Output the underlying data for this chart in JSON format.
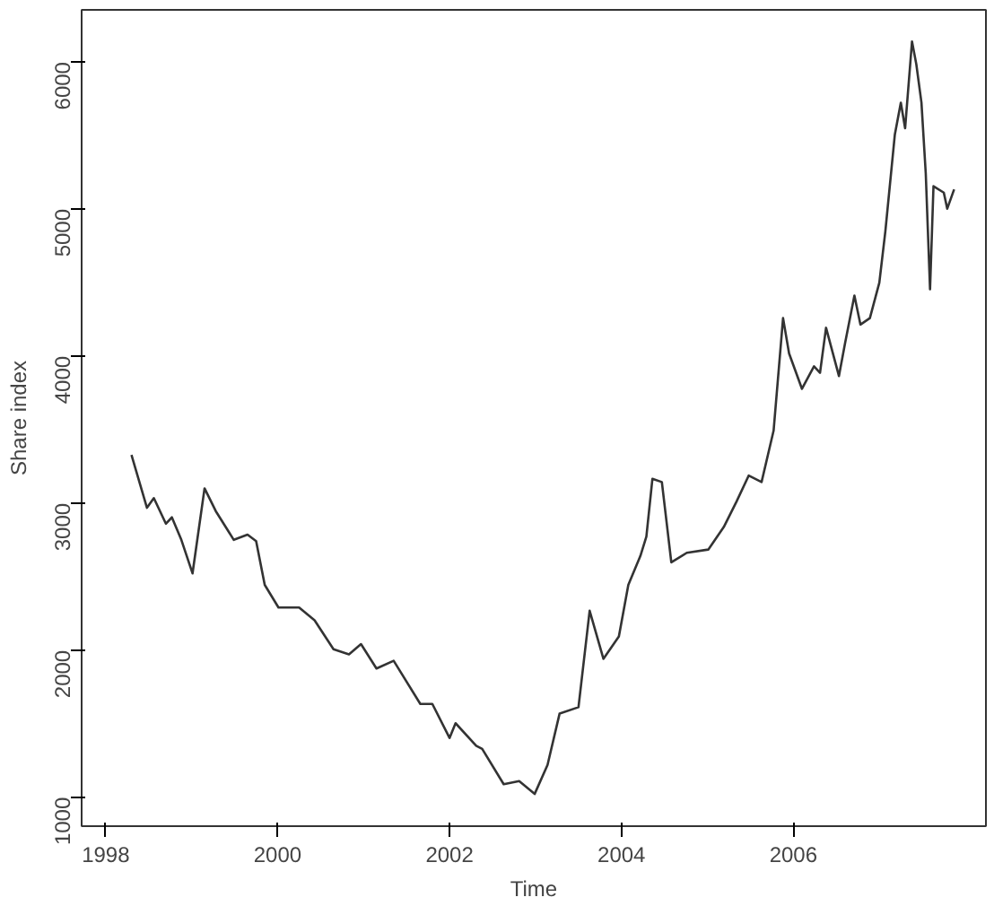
{
  "chart_data": {
    "type": "line",
    "xlabel": "Time",
    "ylabel": "Share index",
    "xlim": [
      1997.72,
      2008.24
    ],
    "ylim": [
      803,
      6354
    ],
    "xticks": [
      1998,
      2000,
      2002,
      2004,
      2006
    ],
    "yticks": [
      1000,
      2000,
      3000,
      4000,
      5000,
      6000
    ],
    "grid": false,
    "series": [
      {
        "color": "#333333",
        "x": [
          1998.3,
          1998.48,
          1998.56,
          1998.7,
          1998.77,
          1998.88,
          1999.01,
          1999.15,
          1999.28,
          1999.49,
          1999.65,
          1999.75,
          1999.85,
          2000.01,
          2000.25,
          2000.43,
          2000.65,
          2000.83,
          2000.97,
          2001.15,
          2001.35,
          2001.66,
          2001.8,
          2002.0,
          2002.07,
          2002.31,
          2002.38,
          2002.63,
          2002.81,
          2002.99,
          2003.14,
          2003.28,
          2003.5,
          2003.63,
          2003.79,
          2003.97,
          2004.08,
          2004.22,
          2004.29,
          2004.36,
          2004.47,
          2004.58,
          2004.76,
          2005.01,
          2005.19,
          2005.34,
          2005.48,
          2005.63,
          2005.77,
          2005.88,
          2005.95,
          2006.1,
          2006.24,
          2006.31,
          2006.38,
          2006.53,
          2006.6,
          2006.71,
          2006.78,
          2006.89,
          2007.0,
          2007.07,
          2007.18,
          2007.25,
          2007.3,
          2007.38,
          2007.43,
          2007.49,
          2007.54,
          2007.59,
          2007.63,
          2007.75,
          2007.79,
          2007.87
        ],
        "values": [
          3327,
          2968,
          3034,
          2860,
          2903,
          2750,
          2522,
          3100,
          2946,
          2750,
          2785,
          2741,
          2444,
          2290,
          2290,
          2203,
          2006,
          1971,
          2041,
          1875,
          1928,
          1634,
          1634,
          1403,
          1503,
          1350,
          1328,
          1088,
          1109,
          1022,
          1219,
          1568,
          1612,
          2268,
          1941,
          2093,
          2444,
          2640,
          2772,
          3165,
          3143,
          2597,
          2662,
          2684,
          2837,
          3012,
          3187,
          3143,
          3493,
          4258,
          4018,
          3777,
          3930,
          3886,
          4192,
          3864,
          4083,
          4411,
          4214,
          4258,
          4499,
          4848,
          5504,
          5723,
          5549,
          6139,
          5985,
          5723,
          5242,
          4454,
          5155,
          5111,
          5002,
          5133
        ]
      }
    ]
  }
}
